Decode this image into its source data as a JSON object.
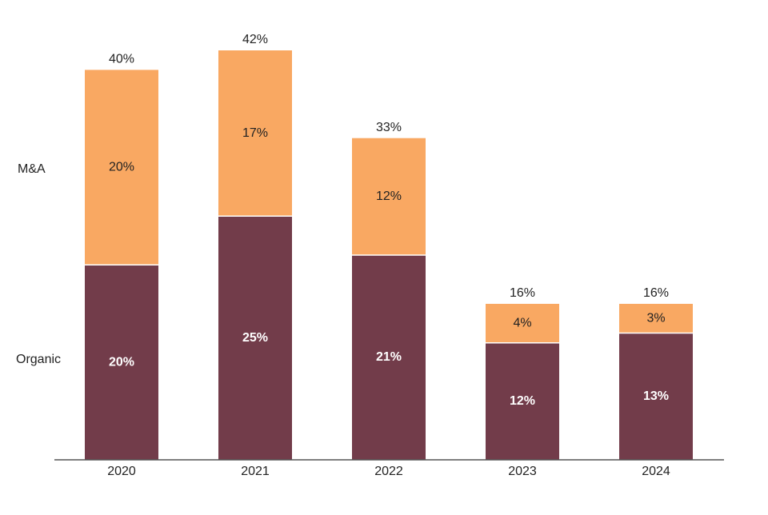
{
  "colors": {
    "ma": "#F9A862",
    "organic": "#723C4A",
    "axis": "#555555",
    "text_dark": "#222222",
    "text_light": "#ffffff"
  },
  "chart_data": {
    "type": "bar",
    "stacked": true,
    "categories": [
      "2020",
      "2021",
      "2022",
      "2023",
      "2024"
    ],
    "series": [
      {
        "name": "Organic",
        "values": [
          20,
          25,
          21,
          12,
          13
        ],
        "labels": [
          "20%",
          "25%",
          "21%",
          "12%",
          "13%"
        ]
      },
      {
        "name": "M&A",
        "values": [
          20,
          17,
          12,
          4,
          3
        ],
        "labels": [
          "20%",
          "17%",
          "12%",
          "4%",
          "3%"
        ]
      }
    ],
    "totals": [
      40,
      42,
      33,
      16,
      16
    ],
    "total_labels": [
      "40%",
      "42%",
      "33%",
      "16%",
      "16%"
    ],
    "title": "",
    "xlabel": "",
    "ylabel": "",
    "ylim": [
      0,
      42
    ],
    "grid": false,
    "legend": "left, inline series labels"
  }
}
